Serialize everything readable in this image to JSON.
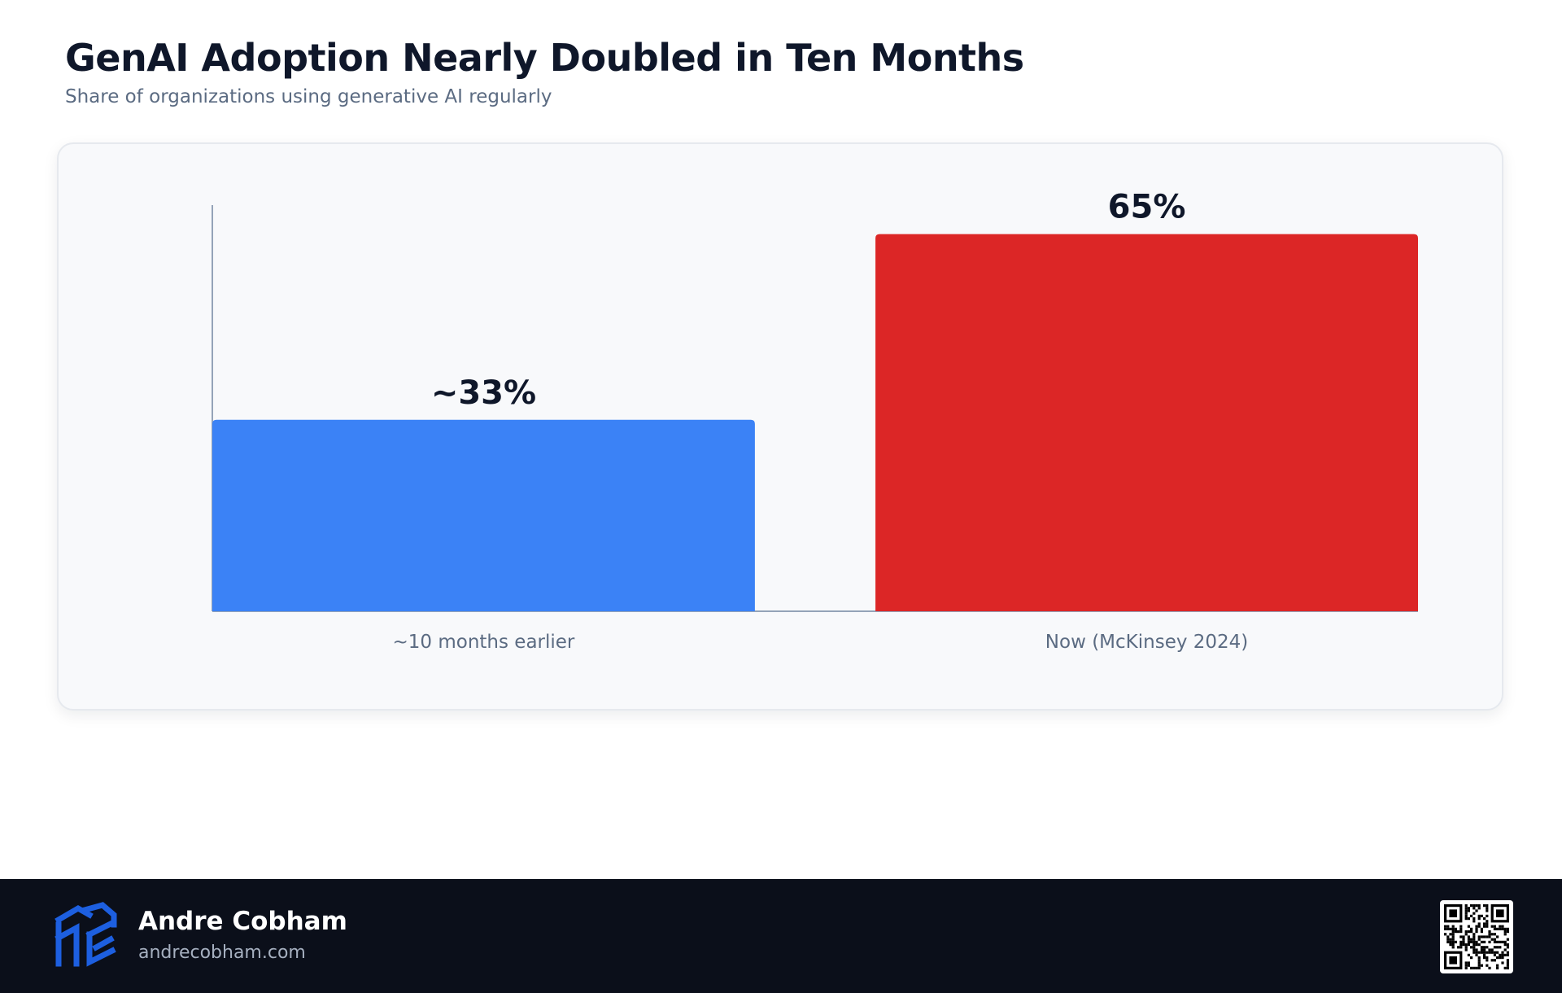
{
  "header": {
    "title": "GenAI Adoption Nearly Doubled in Ten Months",
    "subtitle": "Share of organizations using generative AI regularly"
  },
  "chart_data": {
    "type": "bar",
    "title": "GenAI Adoption Nearly Doubled in Ten Months",
    "subtitle": "Share of organizations using generative AI regularly",
    "categories": [
      "~10 months earlier",
      "Now (McKinsey 2024)"
    ],
    "values": [
      33,
      65
    ],
    "value_labels": [
      "~33%",
      "65%"
    ],
    "colors": [
      "#3b82f6",
      "#dc2626"
    ],
    "ylim": [
      0,
      70
    ],
    "grid": false,
    "xlabel": "",
    "ylabel": ""
  },
  "footer": {
    "author": "Andre Cobham",
    "website": "andrecobham.com",
    "logo_icon": "cube-logo-icon",
    "qr_icon": "qr-code-icon",
    "logo_color": "#1d5fe0"
  }
}
